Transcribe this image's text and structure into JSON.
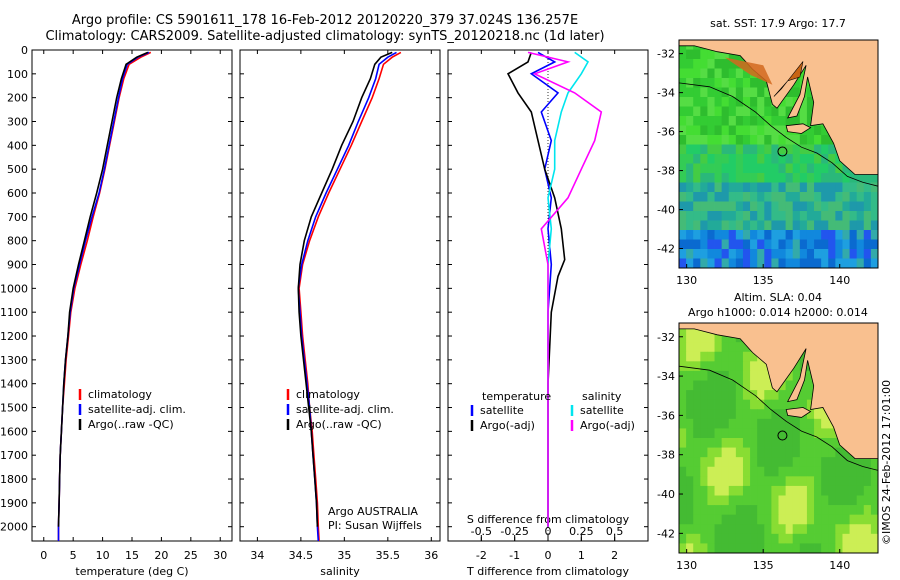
{
  "header": {
    "line1": "Argo profile: CS 5901611_178 16-Feb-2012 20120220_379 37.024S 136.257E",
    "line2": "Climatology: CARS2009. Satellite-adjusted climatology: synTS_20120218.nc (1d later)"
  },
  "colors": {
    "climatology": "#ff0000",
    "satellite": "#0000ff",
    "argo": "#000000",
    "sal_sat": "#00e5ee",
    "sal_argo": "#ff00ff",
    "land": "#f9c08f"
  },
  "chart_data": [
    {
      "type": "line",
      "id": "temperature",
      "xlabel": "temperature (deg C)",
      "xlim": [
        -2,
        32
      ],
      "xticks": [
        "0",
        "5",
        "10",
        "15",
        "20",
        "25",
        "30"
      ],
      "ylim": [
        0,
        2060
      ],
      "yticks": [
        "0",
        "100",
        "200",
        "300",
        "400",
        "500",
        "600",
        "700",
        "800",
        "900",
        "1000",
        "1100",
        "1200",
        "1300",
        "1400",
        "1500",
        "1600",
        "1700",
        "1800",
        "1900",
        "2000"
      ],
      "legend": [
        "climatology",
        "satellite-adj. clim.",
        "Argo(..raw -QC)"
      ],
      "series": [
        {
          "name": "climatology",
          "color": "climatology",
          "x": [
            18.2,
            16.5,
            14.5,
            13.6,
            12.8,
            12,
            11.2,
            10.4,
            9.5,
            8.4,
            7.4,
            6.3,
            5.3,
            4.6,
            4.2,
            3.8,
            3.5,
            3.2,
            3,
            2.8,
            2.7,
            2.6,
            2.5,
            2.5
          ],
          "y": [
            10,
            30,
            60,
            120,
            200,
            300,
            400,
            500,
            600,
            700,
            800,
            900,
            1000,
            1100,
            1200,
            1300,
            1400,
            1500,
            1600,
            1700,
            1800,
            1900,
            2000,
            2060
          ]
        },
        {
          "name": "satellite-adj. clim.",
          "color": "satellite",
          "x": [
            17.9,
            16,
            14.2,
            13.4,
            12.7,
            11.9,
            11.1,
            10.3,
            9.4,
            8.2,
            7.1,
            6.1,
            5.1,
            4.5,
            4.1,
            3.7,
            3.4,
            3.2,
            3,
            2.8,
            2.7,
            2.6,
            2.5,
            2.5
          ],
          "y": [
            10,
            30,
            60,
            120,
            200,
            300,
            400,
            500,
            600,
            700,
            800,
            900,
            1000,
            1100,
            1200,
            1300,
            1400,
            1500,
            1600,
            1700,
            1800,
            1900,
            2000,
            2060
          ]
        },
        {
          "name": "Argo(..raw -QC)",
          "color": "argo",
          "x": [
            17.7,
            15.8,
            14,
            13.2,
            12.4,
            11.6,
            10.8,
            10,
            9,
            7.9,
            6.9,
            5.9,
            5,
            4.4,
            4.1,
            3.7,
            3.4,
            3.2,
            3,
            2.8,
            2.7,
            2.6,
            2.5
          ],
          "y": [
            10,
            30,
            60,
            120,
            200,
            300,
            400,
            500,
            600,
            700,
            800,
            900,
            1000,
            1100,
            1200,
            1300,
            1400,
            1500,
            1600,
            1700,
            1800,
            1900,
            2000
          ]
        }
      ]
    },
    {
      "type": "line",
      "id": "salinity",
      "xlabel": "salinity",
      "xlim": [
        33.8,
        36.1
      ],
      "xticks": [
        "34",
        "34.5",
        "35",
        "35.5",
        "36"
      ],
      "ylim": [
        0,
        2060
      ],
      "legend": [
        "climatology",
        "satellite-adj. clim.",
        "Argo(..raw -QC)"
      ],
      "annotation": [
        "Argo AUSTRALIA",
        "PI: Susan Wijffels"
      ],
      "series": [
        {
          "name": "climatology",
          "color": "climatology",
          "x": [
            35.65,
            35.55,
            35.45,
            35.4,
            35.32,
            35.2,
            35.08,
            34.95,
            34.82,
            34.7,
            34.6,
            34.52,
            34.48,
            34.5,
            34.52,
            34.55,
            34.58,
            34.6,
            34.63,
            34.65,
            34.67,
            34.69,
            34.7,
            34.71
          ],
          "y": [
            10,
            30,
            60,
            120,
            200,
            300,
            400,
            500,
            600,
            700,
            800,
            900,
            1000,
            1100,
            1200,
            1300,
            1400,
            1500,
            1600,
            1700,
            1800,
            1900,
            2000,
            2060
          ]
        },
        {
          "name": "satellite-adj. clim.",
          "color": "satellite",
          "x": [
            35.6,
            35.5,
            35.4,
            35.36,
            35.28,
            35.16,
            35.05,
            34.92,
            34.79,
            34.67,
            34.58,
            34.51,
            34.47,
            34.49,
            34.51,
            34.54,
            34.57,
            34.6,
            34.62,
            34.64,
            34.66,
            34.68,
            34.69,
            34.7
          ],
          "y": [
            10,
            30,
            60,
            120,
            200,
            300,
            400,
            500,
            600,
            700,
            800,
            900,
            1000,
            1100,
            1200,
            1300,
            1400,
            1500,
            1600,
            1700,
            1800,
            1900,
            2000,
            2060
          ]
        },
        {
          "name": "Argo(..raw -QC)",
          "color": "argo",
          "x": [
            35.55,
            35.42,
            35.35,
            35.3,
            35.2,
            35.1,
            34.97,
            34.86,
            34.74,
            34.62,
            34.54,
            34.49,
            34.47,
            34.48,
            34.5,
            34.53,
            34.56,
            34.59,
            34.62,
            34.64,
            34.66,
            34.68,
            34.69
          ],
          "y": [
            10,
            30,
            60,
            120,
            200,
            300,
            400,
            500,
            600,
            700,
            800,
            900,
            1000,
            1100,
            1200,
            1300,
            1400,
            1500,
            1600,
            1700,
            1800,
            1900,
            2000
          ]
        }
      ]
    },
    {
      "type": "line",
      "id": "difference",
      "xlabel": "T difference from climatology",
      "xlabel_top": "S difference from climatology",
      "xlim": [
        -3,
        3
      ],
      "xticks": [
        "-2",
        "-1",
        "0",
        "1",
        "2"
      ],
      "xticks_s": [
        "-0.5",
        "-0.25",
        "0",
        "0.25",
        "0.5"
      ],
      "ylim": [
        0,
        2060
      ],
      "legend_headers": [
        "temperature",
        "salinity"
      ],
      "legend": [
        "satellite",
        "Argo(-adj)",
        "satellite",
        "Argo(-adj)"
      ],
      "series": [
        {
          "name": "temperature satellite",
          "color": "satellite",
          "x": [
            -0.3,
            0.2,
            -0.5,
            0.3,
            -0.2,
            0.1,
            -0.1,
            0.1,
            0,
            0.1,
            0,
            0,
            0,
            0
          ],
          "y": [
            10,
            50,
            100,
            180,
            260,
            380,
            500,
            620,
            750,
            900,
            1100,
            1400,
            1700,
            2000
          ]
        },
        {
          "name": "temperature Argo(-adj)",
          "color": "argo",
          "x": [
            -0.5,
            -0.6,
            -1.2,
            -0.9,
            -0.5,
            -0.3,
            -0.1,
            0.2,
            0.4,
            0.5,
            0.3,
            0.1,
            0,
            0,
            0
          ],
          "y": [
            10,
            50,
            100,
            180,
            260,
            380,
            500,
            620,
            750,
            880,
            950,
            1100,
            1400,
            1700,
            2000
          ]
        },
        {
          "name": "salinity satellite",
          "color": "sal_sat",
          "x": [
            0.4,
            0.6,
            0.5,
            0.3,
            0.2,
            0.1,
            0.1,
            0,
            0.05,
            0,
            0,
            0,
            0
          ],
          "y": [
            10,
            50,
            100,
            180,
            260,
            380,
            500,
            620,
            750,
            900,
            1100,
            1500,
            2000
          ]
        },
        {
          "name": "salinity Argo(-adj)",
          "color": "sal_argo",
          "x": [
            -0.3,
            0.3,
            -0.2,
            0.4,
            0.8,
            0.7,
            0.5,
            0.3,
            -0.1,
            0,
            0,
            0,
            0
          ],
          "y": [
            10,
            50,
            100,
            180,
            260,
            380,
            500,
            620,
            750,
            900,
            1100,
            1500,
            2000
          ]
        }
      ]
    },
    {
      "type": "heatmap",
      "id": "sst_map",
      "title": "sat. SST: 17.9 Argo: 17.7",
      "xticks": [
        "130",
        "135",
        "140"
      ],
      "yticks": [
        "-32",
        "-34",
        "-36",
        "-38",
        "-40",
        "-42"
      ],
      "xlim": [
        129.5,
        142.5
      ],
      "ylim": [
        -43,
        -31.3
      ],
      "marker": {
        "lon": 136.257,
        "lat": -37.024
      },
      "scale": "temperature"
    },
    {
      "type": "heatmap",
      "id": "sla_map",
      "title": "Altim. SLA: 0.04",
      "subtitle": "Argo h1000: 0.014 h2000: 0.014",
      "xticks": [
        "130",
        "135",
        "140"
      ],
      "yticks": [
        "-32",
        "-34",
        "-36",
        "-38",
        "-40",
        "-42"
      ],
      "xlim": [
        129.5,
        142.5
      ],
      "ylim": [
        -43,
        -31.3
      ],
      "marker": {
        "lon": 136.257,
        "lat": -37.024
      },
      "scale": "sla"
    }
  ],
  "side_label": "©IMOS 24-Feb-2012 17:01:00"
}
